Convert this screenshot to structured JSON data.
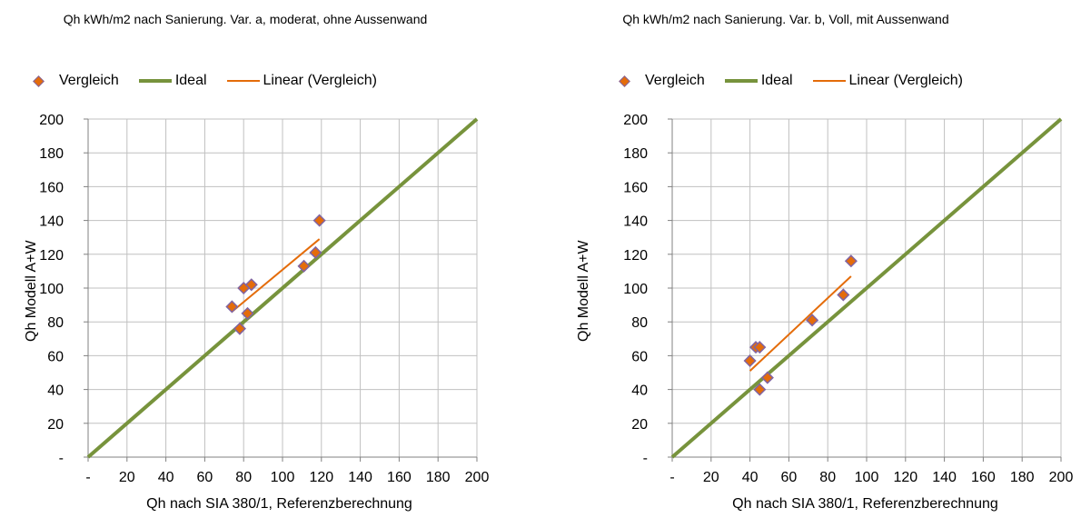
{
  "chart_data": [
    {
      "type": "scatter",
      "title": "Qh kWh/m2 nach Sanierung. Var. a, moderat, ohne Aussenwand",
      "xlabel": "Qh nach SIA 380/1, Referenzberechnung",
      "ylabel": "Qh Modell A+W",
      "xlim": [
        0,
        200
      ],
      "ylim": [
        0,
        200
      ],
      "x_ticks": [
        "-",
        "20",
        "40",
        "60",
        "80",
        "100",
        "120",
        "140",
        "160",
        "180",
        "200"
      ],
      "y_ticks": [
        "-",
        "20",
        "40",
        "60",
        "80",
        "100",
        "120",
        "140",
        "160",
        "180",
        "200"
      ],
      "grid": true,
      "legend_position": "top",
      "legend": [
        "Vergleich",
        "Ideal",
        "Linear (Vergleich)"
      ],
      "series": [
        {
          "name": "Vergleich",
          "color": "#e46c0a",
          "x": [
            74,
            78,
            80,
            82,
            84,
            111,
            117,
            119
          ],
          "y": [
            89,
            76,
            100,
            85,
            102,
            113,
            121,
            140
          ]
        }
      ],
      "ideal_line": {
        "name": "Ideal",
        "color": "#77933c",
        "x": [
          0,
          200
        ],
        "y": [
          0,
          200
        ]
      },
      "trendline": {
        "name": "Linear (Vergleich)",
        "color": "#e46c0a",
        "x": [
          74,
          119
        ],
        "y": [
          86,
          129
        ]
      }
    },
    {
      "type": "scatter",
      "title": "Qh kWh/m2 nach Sanierung. Var. b, Voll, mit Aussenwand",
      "xlabel": "Qh nach SIA 380/1, Referenzberechnung",
      "ylabel": "Qh Modell A+W",
      "xlim": [
        0,
        200
      ],
      "ylim": [
        0,
        200
      ],
      "x_ticks": [
        "-",
        "20",
        "40",
        "60",
        "80",
        "100",
        "120",
        "140",
        "160",
        "180",
        "200"
      ],
      "y_ticks": [
        "-",
        "20",
        "40",
        "60",
        "80",
        "100",
        "120",
        "140",
        "160",
        "180",
        "200"
      ],
      "grid": true,
      "legend_position": "top",
      "legend": [
        "Vergleich",
        "Ideal",
        "Linear (Vergleich)"
      ],
      "series": [
        {
          "name": "Vergleich",
          "color": "#e46c0a",
          "x": [
            40,
            43,
            45,
            45,
            49,
            72,
            88,
            92
          ],
          "y": [
            57,
            65,
            65,
            40,
            47,
            81,
            96,
            116
          ]
        }
      ],
      "ideal_line": {
        "name": "Ideal",
        "color": "#77933c",
        "x": [
          0,
          200
        ],
        "y": [
          0,
          200
        ]
      },
      "trendline": {
        "name": "Linear (Vergleich)",
        "color": "#e46c0a",
        "x": [
          40,
          92
        ],
        "y": [
          51,
          107
        ]
      }
    }
  ]
}
